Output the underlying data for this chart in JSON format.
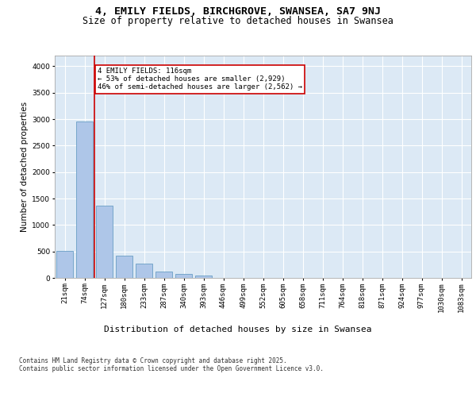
{
  "title_line1": "4, EMILY FIELDS, BIRCHGROVE, SWANSEA, SA7 9NJ",
  "title_line2": "Size of property relative to detached houses in Swansea",
  "xlabel": "Distribution of detached houses by size in Swansea",
  "ylabel": "Number of detached properties",
  "bar_values": [
    510,
    2960,
    1360,
    420,
    270,
    120,
    80,
    50,
    0,
    0,
    0,
    0,
    0,
    0,
    0,
    0,
    0,
    0,
    0,
    0,
    0
  ],
  "bar_labels": [
    "21sqm",
    "74sqm",
    "127sqm",
    "180sqm",
    "233sqm",
    "287sqm",
    "340sqm",
    "393sqm",
    "446sqm",
    "499sqm",
    "552sqm",
    "605sqm",
    "658sqm",
    "711sqm",
    "764sqm",
    "818sqm",
    "871sqm",
    "924sqm",
    "977sqm",
    "1030sqm",
    "1083sqm"
  ],
  "bar_color": "#aec6e8",
  "bar_edge_color": "#6a9ec5",
  "background_color": "#dce9f5",
  "grid_color": "#ffffff",
  "vline_color": "#cc0000",
  "annotation_box_text": "4 EMILY FIELDS: 116sqm\n← 53% of detached houses are smaller (2,929)\n46% of semi-detached houses are larger (2,562) →",
  "annotation_box_color": "#cc0000",
  "annotation_box_facecolor": "white",
  "ylim": [
    0,
    4200
  ],
  "yticks": [
    0,
    500,
    1000,
    1500,
    2000,
    2500,
    3000,
    3500,
    4000
  ],
  "footer_text": "Contains HM Land Registry data © Crown copyright and database right 2025.\nContains public sector information licensed under the Open Government Licence v3.0.",
  "title_fontsize": 9.5,
  "subtitle_fontsize": 8.5,
  "ylabel_fontsize": 7.5,
  "xlabel_fontsize": 8.0,
  "tick_fontsize": 6.5,
  "annotation_fontsize": 6.5,
  "footer_fontsize": 5.5
}
